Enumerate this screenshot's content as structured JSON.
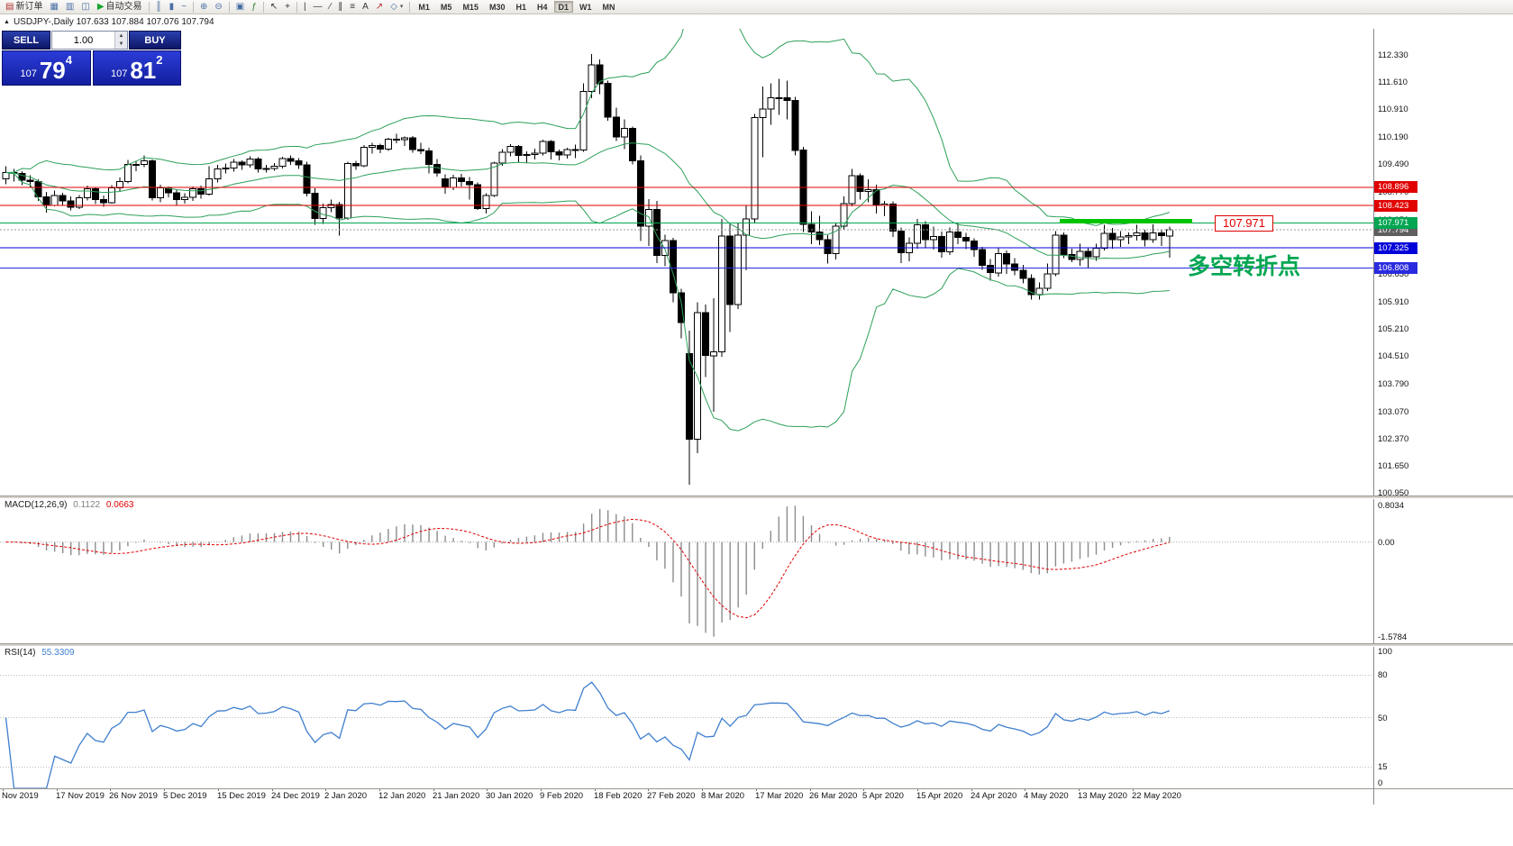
{
  "toolbar": {
    "items": [
      {
        "type": "btn",
        "name": "new-order-button",
        "icon": "▤",
        "label": "新订单",
        "icon_color": "#b03030"
      },
      {
        "type": "btn",
        "name": "chart-windows-icon",
        "icon": "▦",
        "icon_color": "#4a6fa5"
      },
      {
        "type": "btn",
        "name": "profiles-icon",
        "icon": "▥",
        "icon_color": "#4a6fa5"
      },
      {
        "type": "btn",
        "name": "data-window-icon",
        "icon": "◫",
        "icon_color": "#4a6fa5"
      },
      {
        "type": "btn",
        "name": "auto-trading-button",
        "icon": "▶",
        "label": "自动交易",
        "icon_color": "#18a532"
      },
      {
        "type": "sep"
      },
      {
        "type": "btn",
        "name": "bar-chart-icon",
        "icon": "║",
        "icon_color": "#4a6fa5"
      },
      {
        "type": "btn",
        "name": "candlestick-chart-icon",
        "icon": "▮",
        "icon_color": "#4a6fa5"
      },
      {
        "type": "btn",
        "name": "line-chart-icon",
        "icon": "~",
        "icon_color": "#4a6fa5"
      },
      {
        "type": "sep"
      },
      {
        "type": "btn",
        "name": "zoom-in-icon",
        "icon": "⊕",
        "icon_color": "#4a6fa5"
      },
      {
        "type": "btn",
        "name": "zoom-out-icon",
        "icon": "⊖",
        "icon_color": "#4a6fa5"
      },
      {
        "type": "sep"
      },
      {
        "type": "btn",
        "name": "tile-windows-icon",
        "icon": "▣",
        "icon_color": "#4a6fa5"
      },
      {
        "type": "btn",
        "name": "indicators-icon",
        "icon": "ƒ",
        "icon_color": "#2f7d32"
      },
      {
        "type": "sep"
      },
      {
        "type": "btn",
        "name": "cursor-icon",
        "icon": "↖",
        "icon_color": "#333333"
      },
      {
        "type": "btn",
        "name": "crosshair-icon",
        "icon": "+",
        "icon_color": "#333333"
      },
      {
        "type": "sep"
      },
      {
        "type": "btn",
        "name": "vertical-line-icon",
        "icon": "|",
        "icon_color": "#333333"
      },
      {
        "type": "btn",
        "name": "horizontal-line-icon",
        "icon": "—",
        "icon_color": "#333333"
      },
      {
        "type": "btn",
        "name": "trendline-icon",
        "icon": "∕",
        "icon_color": "#333333"
      },
      {
        "type": "btn",
        "name": "channel-icon",
        "icon": "∥",
        "icon_color": "#333333"
      },
      {
        "type": "btn",
        "name": "fibonacci-icon",
        "icon": "≡",
        "icon_color": "#333333"
      },
      {
        "type": "btn",
        "name": "text-tool-icon",
        "icon": "A",
        "icon_color": "#333333"
      },
      {
        "type": "btn",
        "name": "arrows-tool-icon",
        "icon": "↗",
        "icon_color": "#b03030"
      },
      {
        "type": "btn",
        "name": "shapes-tool-icon",
        "icon": "◇",
        "caret": true,
        "icon_color": "#4a6fa5"
      },
      {
        "type": "sep"
      }
    ],
    "timeframes": {
      "options": [
        "M1",
        "M5",
        "M15",
        "M30",
        "H1",
        "H4",
        "D1",
        "W1",
        "MN"
      ],
      "active": "D1"
    }
  },
  "chart": {
    "title_line": "USDJPY-,Daily 107.633 107.884 107.076 107.794",
    "collapse_icon": "▲"
  },
  "trade_panel": {
    "sell_label": "SELL",
    "buy_label": "BUY",
    "volume": "1.00",
    "sell_price": {
      "prefix": "107",
      "big": "79",
      "sup": "4"
    },
    "buy_price": {
      "prefix": "107",
      "big": "81",
      "sup": "2"
    }
  },
  "levels": {
    "hlines": [
      {
        "price": 108.896,
        "label": "108.896",
        "color": "#e00000"
      },
      {
        "price": 108.423,
        "label": "108.423",
        "color": "#e00000"
      },
      {
        "price": 107.971,
        "label": "107.971",
        "color": "#00a651"
      },
      {
        "price": 107.325,
        "label": "107.325",
        "color": "#0000d8"
      },
      {
        "price": 106.808,
        "label": "106.808",
        "color": "#2a2ae0"
      }
    ],
    "bid": {
      "price": 107.794,
      "label": "107.794",
      "color": "#5f5f5f"
    },
    "trend_segment": {
      "price": 107.971,
      "color": "#00c400"
    },
    "callout": {
      "text": "107.971",
      "color": "#e00000"
    },
    "annotation": {
      "text": "多空转折点",
      "color": "#00a651"
    }
  },
  "chart_data": {
    "type": "candlestick",
    "symbol": "USDJPY-",
    "period": "Daily",
    "ohlc_display": {
      "open": "107.633",
      "high": "107.884",
      "low": "107.076",
      "close": "107.794"
    },
    "price_range": [
      100.9,
      113.01
    ],
    "y_ticks": [
      "112.330",
      "111.610",
      "110.910",
      "110.190",
      "109.490",
      "108.770",
      "108.050",
      "107.330",
      "106.630",
      "105.910",
      "105.210",
      "104.510",
      "103.790",
      "103.070",
      "102.370",
      "101.650",
      "100.950"
    ],
    "x_ticks": [
      "Nov 2019",
      "17 Nov 2019",
      "26 Nov 2019",
      "5 Dec 2019",
      "15 Dec 2019",
      "24 Dec 2019",
      "2 Jan 2020",
      "12 Jan 2020",
      "21 Jan 2020",
      "30 Jan 2020",
      "9 Feb 2020",
      "18 Feb 2020",
      "27 Feb 2020",
      "8 Mar 2020",
      "17 Mar 2020",
      "26 Mar 2020",
      "5 Apr 2020",
      "15 Apr 2020",
      "24 Apr 2020",
      "4 May 2020",
      "13 May 2020",
      "22 May 2020"
    ],
    "overlays": {
      "bollinger": {
        "period": 20,
        "deviation": 2,
        "color": "#2da05a"
      }
    },
    "candles": [
      [
        109.12,
        109.45,
        108.98,
        109.28
      ],
      [
        109.28,
        109.37,
        109.05,
        109.26
      ],
      [
        109.26,
        109.32,
        108.95,
        109.08
      ],
      [
        109.08,
        109.21,
        108.88,
        109.05
      ],
      [
        109.05,
        109.1,
        108.55,
        108.65
      ],
      [
        108.65,
        108.78,
        108.24,
        108.43
      ],
      [
        108.43,
        108.81,
        108.4,
        108.68
      ],
      [
        108.68,
        108.76,
        108.44,
        108.55
      ],
      [
        108.55,
        108.66,
        108.3,
        108.38
      ],
      [
        108.38,
        108.7,
        108.33,
        108.63
      ],
      [
        108.63,
        108.94,
        108.56,
        108.86
      ],
      [
        108.86,
        108.91,
        108.46,
        108.58
      ],
      [
        108.58,
        108.69,
        108.39,
        108.5
      ],
      [
        108.5,
        108.95,
        108.47,
        108.88
      ],
      [
        108.88,
        109.15,
        108.78,
        109.05
      ],
      [
        109.05,
        109.61,
        109.0,
        109.49
      ],
      [
        109.49,
        109.59,
        109.32,
        109.49
      ],
      [
        109.49,
        109.73,
        109.42,
        109.59
      ],
      [
        109.59,
        109.62,
        108.56,
        108.63
      ],
      [
        108.63,
        108.96,
        108.51,
        108.88
      ],
      [
        108.88,
        108.92,
        108.64,
        108.76
      ],
      [
        108.76,
        108.83,
        108.42,
        108.58
      ],
      [
        108.58,
        108.74,
        108.48,
        108.64
      ],
      [
        108.64,
        108.92,
        108.55,
        108.86
      ],
      [
        108.86,
        108.94,
        108.6,
        108.72
      ],
      [
        108.72,
        109.45,
        108.68,
        109.12
      ],
      [
        109.12,
        109.48,
        109.02,
        109.38
      ],
      [
        109.38,
        109.51,
        109.26,
        109.4
      ],
      [
        109.4,
        109.63,
        109.31,
        109.55
      ],
      [
        109.55,
        109.6,
        109.35,
        109.48
      ],
      [
        109.48,
        109.7,
        109.41,
        109.63
      ],
      [
        109.63,
        109.68,
        109.28,
        109.37
      ],
      [
        109.37,
        109.48,
        109.28,
        109.39
      ],
      [
        109.39,
        109.53,
        109.33,
        109.45
      ],
      [
        109.45,
        109.69,
        109.39,
        109.64
      ],
      [
        109.64,
        109.72,
        109.48,
        109.58
      ],
      [
        109.58,
        109.66,
        109.38,
        109.48
      ],
      [
        109.48,
        109.56,
        108.66,
        108.74
      ],
      [
        108.74,
        108.87,
        107.92,
        108.09
      ],
      [
        108.09,
        108.47,
        107.95,
        108.37
      ],
      [
        108.37,
        108.58,
        108.25,
        108.45
      ],
      [
        108.45,
        108.52,
        107.65,
        108.1
      ],
      [
        108.1,
        109.56,
        108.05,
        109.51
      ],
      [
        109.51,
        109.58,
        109.35,
        109.46
      ],
      [
        109.46,
        110.0,
        109.42,
        109.94
      ],
      [
        109.94,
        110.05,
        109.77,
        109.98
      ],
      [
        109.98,
        110.03,
        109.78,
        109.89
      ],
      [
        109.89,
        110.18,
        109.84,
        110.15
      ],
      [
        110.15,
        110.29,
        110.04,
        110.14
      ],
      [
        110.14,
        110.22,
        109.97,
        110.18
      ],
      [
        110.18,
        110.23,
        109.79,
        109.88
      ],
      [
        109.88,
        110.05,
        109.76,
        109.84
      ],
      [
        109.84,
        109.92,
        109.26,
        109.49
      ],
      [
        109.49,
        109.63,
        109.18,
        109.27
      ],
      [
        109.12,
        109.24,
        108.73,
        108.9
      ],
      [
        108.9,
        109.22,
        108.82,
        109.14
      ],
      [
        109.14,
        109.25,
        108.92,
        109.05
      ],
      [
        109.05,
        109.16,
        108.58,
        108.96
      ],
      [
        108.96,
        109.02,
        108.31,
        108.35
      ],
      [
        108.35,
        108.74,
        108.22,
        108.69
      ],
      [
        108.69,
        109.56,
        108.65,
        109.53
      ],
      [
        109.53,
        109.89,
        109.46,
        109.81
      ],
      [
        109.81,
        110.02,
        109.7,
        109.96
      ],
      [
        109.96,
        110.0,
        109.55,
        109.73
      ],
      [
        109.73,
        109.83,
        109.54,
        109.75
      ],
      [
        109.75,
        109.9,
        109.62,
        109.78
      ],
      [
        109.78,
        110.14,
        109.72,
        110.09
      ],
      [
        110.09,
        110.12,
        109.62,
        109.82
      ],
      [
        109.82,
        109.88,
        109.6,
        109.74
      ],
      [
        109.74,
        109.92,
        109.64,
        109.88
      ],
      [
        109.88,
        110.01,
        109.65,
        109.86
      ],
      [
        109.86,
        111.59,
        109.82,
        111.38
      ],
      [
        111.38,
        112.35,
        111.21,
        112.08
      ],
      [
        112.08,
        112.21,
        111.32,
        111.59
      ],
      [
        111.59,
        111.67,
        110.62,
        110.72
      ],
      [
        110.72,
        110.97,
        110.1,
        110.21
      ],
      [
        110.21,
        110.66,
        109.89,
        110.43
      ],
      [
        110.43,
        110.47,
        109.49,
        109.59
      ],
      [
        109.59,
        109.73,
        107.51,
        107.89
      ],
      [
        107.89,
        108.59,
        107.38,
        108.32
      ],
      [
        108.32,
        108.54,
        106.93,
        107.13
      ],
      [
        107.13,
        107.67,
        106.85,
        107.52
      ],
      [
        107.52,
        107.59,
        105.92,
        106.16
      ],
      [
        106.16,
        106.26,
        104.98,
        105.39
      ],
      [
        104.58,
        105.18,
        101.18,
        102.36
      ],
      [
        102.36,
        105.92,
        102.0,
        105.64
      ],
      [
        105.64,
        105.86,
        103.98,
        104.53
      ],
      [
        104.53,
        106.02,
        103.08,
        104.63
      ],
      [
        104.63,
        108.08,
        104.5,
        107.63
      ],
      [
        107.63,
        107.95,
        105.14,
        105.85
      ],
      [
        105.85,
        107.96,
        105.74,
        107.66
      ],
      [
        107.66,
        108.42,
        106.75,
        108.08
      ],
      [
        108.08,
        110.8,
        107.98,
        110.71
      ],
      [
        110.71,
        111.51,
        109.68,
        110.93
      ],
      [
        110.93,
        111.59,
        110.52,
        111.22
      ],
      [
        111.22,
        111.71,
        110.78,
        111.22
      ],
      [
        111.22,
        111.66,
        110.66,
        111.15
      ],
      [
        111.15,
        111.24,
        109.72,
        109.86
      ],
      [
        109.86,
        109.95,
        107.74,
        107.94
      ],
      [
        107.94,
        108.28,
        107.42,
        107.74
      ],
      [
        107.74,
        108.16,
        107.4,
        107.54
      ],
      [
        107.54,
        107.66,
        106.92,
        107.18
      ],
      [
        107.18,
        107.98,
        107.02,
        107.89
      ],
      [
        107.89,
        108.66,
        107.78,
        108.47
      ],
      [
        108.47,
        109.38,
        108.41,
        109.2
      ],
      [
        109.2,
        109.26,
        108.58,
        108.79
      ],
      [
        108.79,
        109.1,
        108.51,
        108.84
      ],
      [
        108.84,
        108.97,
        108.22,
        108.43
      ],
      [
        108.43,
        108.55,
        108.15,
        108.46
      ],
      [
        108.46,
        108.53,
        107.61,
        107.76
      ],
      [
        107.76,
        107.85,
        106.93,
        107.2
      ],
      [
        107.2,
        107.6,
        106.98,
        107.45
      ],
      [
        107.45,
        108.08,
        107.31,
        107.92
      ],
      [
        107.92,
        108.02,
        107.32,
        107.54
      ],
      [
        107.54,
        107.88,
        107.28,
        107.62
      ],
      [
        107.62,
        107.75,
        107.07,
        107.22
      ],
      [
        107.22,
        107.86,
        107.14,
        107.74
      ],
      [
        107.74,
        107.98,
        107.42,
        107.6
      ],
      [
        107.6,
        107.72,
        107.29,
        107.5
      ],
      [
        107.5,
        107.58,
        107.1,
        107.28
      ],
      [
        107.28,
        107.35,
        106.76,
        106.87
      ],
      [
        106.87,
        107.04,
        106.48,
        106.68
      ],
      [
        106.68,
        107.32,
        106.58,
        107.18
      ],
      [
        107.18,
        107.26,
        106.65,
        106.91
      ],
      [
        106.91,
        107.06,
        106.62,
        106.74
      ],
      [
        106.74,
        106.88,
        106.4,
        106.54
      ],
      [
        106.54,
        106.64,
        105.99,
        106.11
      ],
      [
        106.11,
        106.43,
        105.98,
        106.28
      ],
      [
        106.28,
        106.92,
        106.21,
        106.65
      ],
      [
        106.65,
        107.76,
        106.59,
        107.66
      ],
      [
        107.66,
        107.73,
        107.06,
        107.15
      ],
      [
        107.15,
        107.3,
        106.95,
        107.03
      ],
      [
        107.03,
        107.43,
        106.86,
        107.23
      ],
      [
        107.23,
        107.33,
        106.82,
        107.09
      ],
      [
        107.09,
        107.44,
        106.99,
        107.32
      ],
      [
        107.32,
        107.92,
        107.26,
        107.7
      ],
      [
        107.7,
        107.84,
        107.3,
        107.54
      ],
      [
        107.54,
        107.76,
        107.35,
        107.61
      ],
      [
        107.61,
        107.73,
        107.42,
        107.64
      ],
      [
        107.64,
        107.92,
        107.52,
        107.72
      ],
      [
        107.72,
        107.8,
        107.36,
        107.54
      ],
      [
        107.54,
        107.94,
        107.46,
        107.72
      ],
      [
        107.72,
        107.78,
        107.38,
        107.64
      ],
      [
        107.633,
        107.884,
        107.076,
        107.794
      ]
    ],
    "panels": [
      {
        "type": "macd",
        "title": "MACD(12,26,9)",
        "value": "0.1122",
        "signal_value": "0.0663",
        "params": [
          12,
          26,
          9
        ],
        "histogram_color": "#8c8c8c",
        "signal_color": "#e00000",
        "value_color": "#808080",
        "scale_labels": {
          "max": "0.8034",
          "zero": "0.00",
          "min": "-1.5784"
        }
      },
      {
        "type": "rsi",
        "title": "RSI(14)",
        "value": "55.3309",
        "period": 14,
        "line_color": "#3f7fce",
        "levels": [
          {
            "value": 100,
            "label": "100"
          },
          {
            "value": 80,
            "label": "80"
          },
          {
            "value": 50,
            "label": "50"
          },
          {
            "value": 15,
            "label": "15"
          },
          {
            "value": 0,
            "label": "0"
          }
        ]
      }
    ]
  }
}
